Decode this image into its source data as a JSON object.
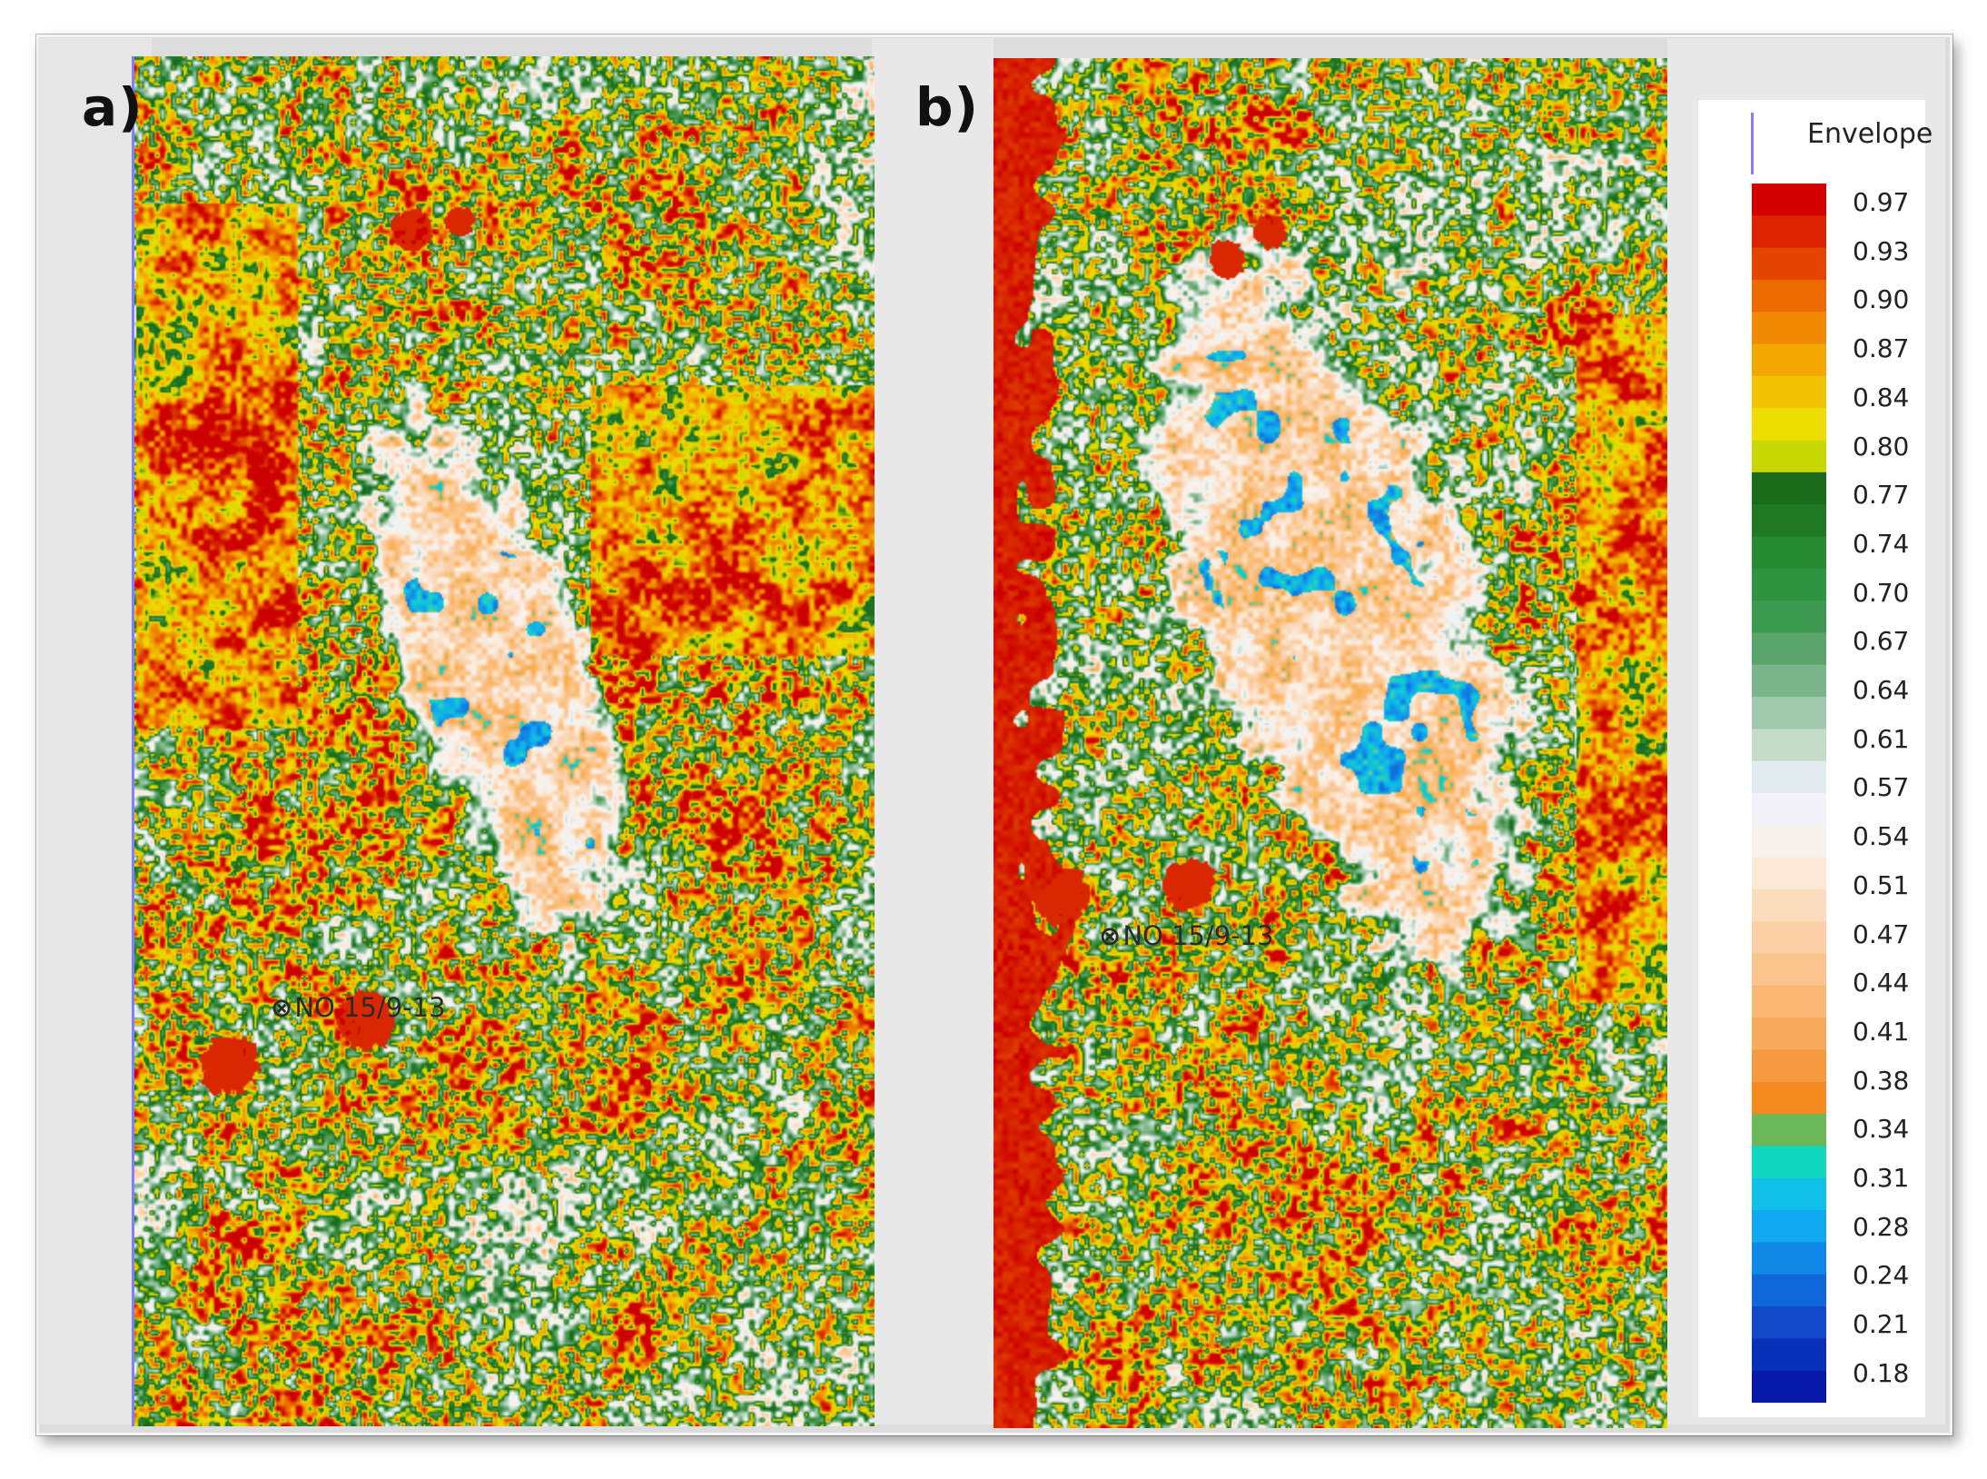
{
  "panels": [
    {
      "label": "a)",
      "well": "NO 15/9-13"
    },
    {
      "label": "b)",
      "well": "NO 15/9-13"
    }
  ],
  "well_icon": "well-cross-icon",
  "legend": {
    "title": "Envelope",
    "ticks": [
      "0.97",
      "0.93",
      "0.90",
      "0.87",
      "0.84",
      "0.80",
      "0.77",
      "0.74",
      "0.70",
      "0.67",
      "0.64",
      "0.61",
      "0.57",
      "0.54",
      "0.51",
      "0.47",
      "0.44",
      "0.41",
      "0.38",
      "0.34",
      "0.31",
      "0.28",
      "0.24",
      "0.21",
      "0.18"
    ],
    "colors": [
      "#d40000",
      "#dd2200",
      "#e54400",
      "#ec6a00",
      "#f08800",
      "#f2a800",
      "#f0c400",
      "#eedd00",
      "#c8d800",
      "#1a6b1a",
      "#1e7a22",
      "#268a30",
      "#2f9440",
      "#3c9a50",
      "#5aa66a",
      "#7ab48a",
      "#a0c8ac",
      "#c4dcc8",
      "#e2ecee",
      "#f2f2f8",
      "#f8f2ec",
      "#fbe8d4",
      "#fbdcbc",
      "#fad0a4",
      "#f9c48c",
      "#f8b874",
      "#f7aa5c",
      "#f59a40",
      "#f58a20",
      "#6ab858",
      "#10d8c0",
      "#10c0e8",
      "#10a8f0",
      "#1088e8",
      "#1068d8",
      "#1048c8",
      "#0830b8",
      "#0818a8"
    ]
  }
}
